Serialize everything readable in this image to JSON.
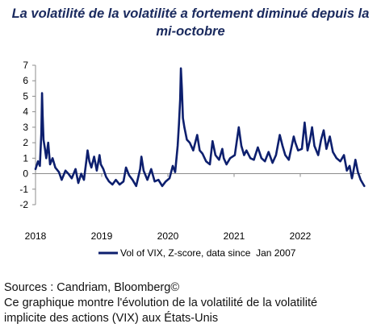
{
  "chart_title": {
    "line1": "La volatilité de la volatilité a fortement diminué depuis la",
    "line2": "mi-octobre"
  },
  "footer": {
    "sources": "Sources : Candriam, Bloomberg©",
    "caption_line1": "Ce graphique montre l'évolution de la volatilité de la volatilité",
    "caption_line2": "implicite des actions (VIX) aux États-Unis"
  },
  "colors": {
    "series": "#0d1f6e",
    "axis": "#8c8c8c",
    "title": "#1a2a5e"
  },
  "chart_data": {
    "type": "line",
    "title": "La volatilité de la volatilité a fortement diminué depuis la mi-octobre",
    "x_ticks": [
      "2018",
      "2019",
      "2020",
      "2021",
      "2022"
    ],
    "y_ticks": [
      "-2",
      "-1",
      "0",
      "1",
      "2",
      "3",
      "4",
      "5",
      "6",
      "7"
    ],
    "ylim": [
      -2,
      7
    ],
    "xlim": [
      "2018-01",
      "2022-12"
    ],
    "grid": false,
    "legend": "bottom-center",
    "series": [
      {
        "name": "Vol of VIX, Z-score, data since  Jan 2007",
        "x": [
          "2018-01-01",
          "2018-01-15",
          "2018-01-25",
          "2018-02-02",
          "2018-02-06",
          "2018-02-09",
          "2018-02-14",
          "2018-02-22",
          "2018-03-01",
          "2018-03-12",
          "2018-03-22",
          "2018-04-05",
          "2018-04-20",
          "2018-05-10",
          "2018-05-25",
          "2018-06-15",
          "2018-07-01",
          "2018-07-20",
          "2018-08-10",
          "2018-08-25",
          "2018-09-10",
          "2018-09-25",
          "2018-10-10",
          "2018-10-15",
          "2018-10-25",
          "2018-11-05",
          "2018-11-20",
          "2018-12-05",
          "2018-12-20",
          "2018-12-27",
          "2019-01-10",
          "2019-01-25",
          "2019-02-10",
          "2019-03-01",
          "2019-03-20",
          "2019-04-10",
          "2019-05-01",
          "2019-05-15",
          "2019-06-01",
          "2019-06-20",
          "2019-07-10",
          "2019-08-01",
          "2019-08-08",
          "2019-08-20",
          "2019-09-10",
          "2019-10-01",
          "2019-10-20",
          "2019-11-10",
          "2019-12-01",
          "2019-12-20",
          "2020-01-10",
          "2020-01-28",
          "2020-02-10",
          "2020-02-24",
          "2020-03-02",
          "2020-03-09",
          "2020-03-13",
          "2020-03-18",
          "2020-03-24",
          "2020-04-01",
          "2020-04-15",
          "2020-05-01",
          "2020-05-20",
          "2020-06-11",
          "2020-06-25",
          "2020-07-10",
          "2020-07-30",
          "2020-08-20",
          "2020-09-04",
          "2020-09-20",
          "2020-10-10",
          "2020-10-28",
          "2020-11-05",
          "2020-11-20",
          "2020-12-10",
          "2021-01-05",
          "2021-01-27",
          "2021-02-10",
          "2021-02-25",
          "2021-03-10",
          "2021-04-01",
          "2021-04-20",
          "2021-05-12",
          "2021-06-01",
          "2021-06-20",
          "2021-07-10",
          "2021-08-01",
          "2021-08-20",
          "2021-09-10",
          "2021-09-25",
          "2021-10-10",
          "2021-10-30",
          "2021-11-26",
          "2021-12-05",
          "2021-12-20",
          "2022-01-10",
          "2022-01-25",
          "2022-02-10",
          "2022-02-24",
          "2022-03-07",
          "2022-03-20",
          "2022-04-10",
          "2022-04-26",
          "2022-05-10",
          "2022-05-25",
          "2022-06-13",
          "2022-06-30",
          "2022-07-20",
          "2022-08-10",
          "2022-08-30",
          "2022-09-15",
          "2022-09-30",
          "2022-10-13",
          "2022-10-20",
          "2022-11-01",
          "2022-11-15",
          "2022-11-30",
          "2022-12-10",
          "2022-12-20"
        ],
        "values": [
          0.3,
          0.8,
          0.5,
          2.6,
          5.2,
          3.8,
          2.2,
          1.6,
          1.0,
          2.0,
          0.6,
          1.0,
          0.4,
          0.1,
          -0.4,
          0.2,
          0.0,
          -0.3,
          0.3,
          -0.6,
          0.0,
          -0.4,
          1.0,
          1.5,
          0.8,
          0.4,
          1.1,
          0.2,
          1.2,
          0.6,
          0.3,
          -0.2,
          -0.5,
          -0.7,
          -0.4,
          -0.7,
          -0.5,
          0.4,
          -0.1,
          -0.4,
          -0.8,
          0.3,
          1.1,
          0.2,
          -0.4,
          0.3,
          -0.5,
          -0.4,
          -0.8,
          -0.5,
          -0.3,
          0.5,
          0.1,
          1.8,
          3.2,
          4.8,
          6.8,
          5.5,
          3.6,
          3.0,
          2.2,
          2.0,
          1.5,
          2.5,
          1.5,
          1.3,
          0.8,
          0.6,
          2.1,
          1.2,
          0.9,
          1.6,
          1.0,
          0.6,
          1.0,
          1.2,
          3.0,
          1.8,
          1.2,
          1.5,
          1.0,
          0.9,
          1.7,
          1.0,
          0.8,
          1.4,
          0.7,
          1.2,
          2.5,
          1.8,
          1.2,
          0.9,
          2.4,
          2.0,
          1.5,
          1.6,
          3.3,
          1.5,
          2.2,
          3.0,
          1.8,
          1.2,
          2.2,
          2.8,
          1.6,
          2.4,
          1.4,
          1.0,
          0.8,
          1.2,
          0.2,
          0.5,
          -0.3,
          0.1,
          0.9,
          0.1,
          -0.4,
          -0.6,
          -0.8
        ]
      }
    ]
  }
}
